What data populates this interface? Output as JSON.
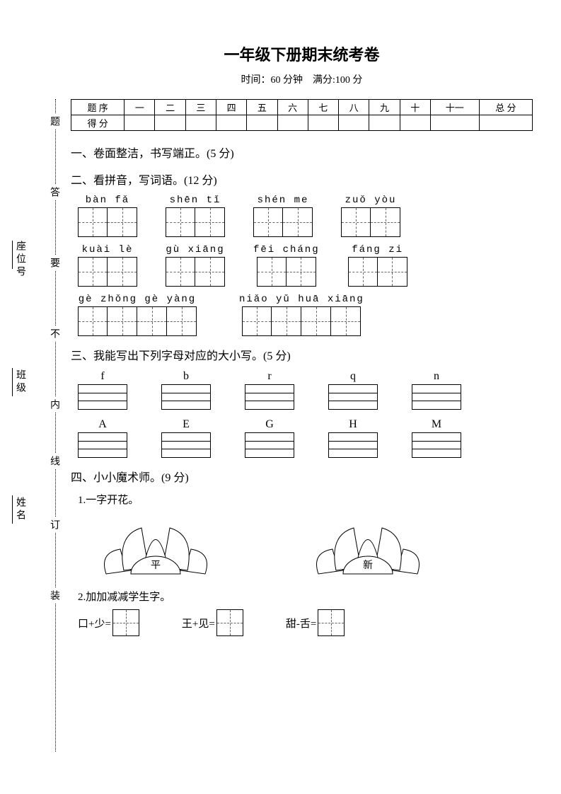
{
  "title": "一年级下册期末统考卷",
  "subtitle_time": "时间：60 分钟",
  "subtitle_score": "满分:100 分",
  "binding": {
    "seat": "座位号",
    "class": "班级",
    "name": "姓名",
    "col": [
      "题",
      "答",
      "要",
      "不",
      "内",
      "线",
      "订",
      "装"
    ]
  },
  "score_headers": [
    "题 序",
    "一",
    "二",
    "三",
    "四",
    "五",
    "六",
    "七",
    "八",
    "九",
    "十",
    "十一",
    "总 分"
  ],
  "score_row_label": "得 分",
  "sections": {
    "s1": "一、卷面整洁，书写端正。(5 分)",
    "s2": "二、看拼音，写词语。(12 分)",
    "s3": "三、我能写出下列字母对应的大小写。(5 分)",
    "s4": "四、小小魔术师。(9 分)",
    "s4_1": "1.一字开花。",
    "s4_2": "2.加加减减学生字。"
  },
  "pinyin_rows": [
    [
      {
        "py": "bàn fǎ",
        "n": 2
      },
      {
        "py": "shēn tǐ",
        "n": 2
      },
      {
        "py": "shén me",
        "n": 2
      },
      {
        "py": "zuǒ yòu",
        "n": 2
      }
    ],
    [
      {
        "py": "kuài lè",
        "n": 2
      },
      {
        "py": "gù xiāng",
        "n": 2
      },
      {
        "py": "fēi cháng",
        "n": 2
      },
      {
        "py": "fáng zi",
        "n": 2
      }
    ],
    [
      {
        "py": "gè zhǒng gè yàng",
        "n": 4
      },
      {
        "py": "niǎo yǔ huā xiāng",
        "n": 4
      }
    ]
  ],
  "letters_row1": [
    "f",
    "b",
    "r",
    "q",
    "n"
  ],
  "letters_row2": [
    "A",
    "E",
    "G",
    "H",
    "M"
  ],
  "lotus": [
    "平",
    "新"
  ],
  "equations": [
    {
      "lhs": "口+少="
    },
    {
      "lhs": "王+见="
    },
    {
      "lhs": "甜-舌="
    }
  ]
}
